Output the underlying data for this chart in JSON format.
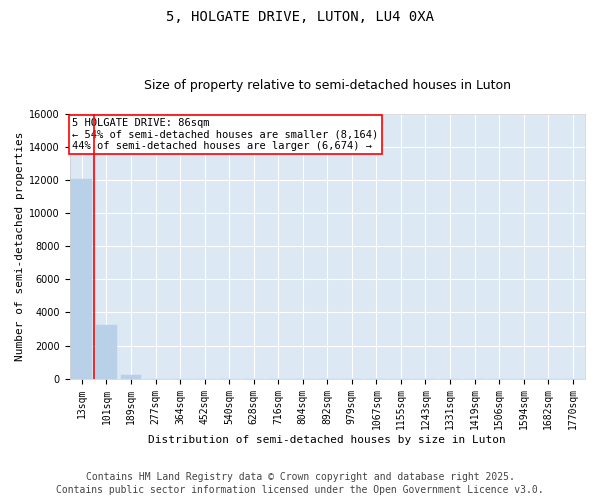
{
  "title_line1": "5, HOLGATE DRIVE, LUTON, LU4 0XA",
  "title_line2": "Size of property relative to semi-detached houses in Luton",
  "xlabel": "Distribution of semi-detached houses by size in Luton",
  "ylabel": "Number of semi-detached properties",
  "bar_color": "#b8d0e8",
  "bar_edge_color": "#b8d0e8",
  "vline_color": "red",
  "annotation_text": "5 HOLGATE DRIVE: 86sqm\n← 54% of semi-detached houses are smaller (8,164)\n44% of semi-detached houses are larger (6,674) →",
  "categories": [
    "13sqm",
    "101sqm",
    "189sqm",
    "277sqm",
    "364sqm",
    "452sqm",
    "540sqm",
    "628sqm",
    "716sqm",
    "804sqm",
    "892sqm",
    "979sqm",
    "1067sqm",
    "1155sqm",
    "1243sqm",
    "1331sqm",
    "1419sqm",
    "1506sqm",
    "1594sqm",
    "1682sqm",
    "1770sqm"
  ],
  "values": [
    12050,
    3250,
    200,
    0,
    0,
    0,
    0,
    0,
    0,
    0,
    0,
    0,
    0,
    0,
    0,
    0,
    0,
    0,
    0,
    0,
    0
  ],
  "ylim": [
    0,
    16000
  ],
  "yticks": [
    0,
    2000,
    4000,
    6000,
    8000,
    10000,
    12000,
    14000,
    16000
  ],
  "background_color": "#dce9f5",
  "footer_line1": "Contains HM Land Registry data © Crown copyright and database right 2025.",
  "footer_line2": "Contains public sector information licensed under the Open Government Licence v3.0.",
  "title_fontsize": 10,
  "subtitle_fontsize": 9,
  "footer_fontsize": 7,
  "annotation_fontsize": 7.5,
  "axis_label_fontsize": 8,
  "tick_fontsize": 7
}
